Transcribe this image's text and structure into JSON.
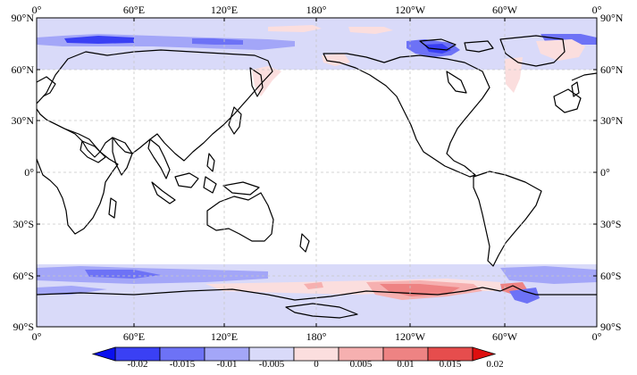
{
  "map": {
    "projection": "equirectangular",
    "central_longitude": "180°",
    "lat_range": [
      -90,
      90
    ],
    "grid": true,
    "lon_ticks": [
      "0°",
      "60°E",
      "120°E",
      "180°",
      "120°W",
      "60°W",
      "0°"
    ],
    "lat_ticks_left": [
      "90°N",
      "60°N",
      "30°N",
      "0°",
      "30°S",
      "60°S",
      "90°S"
    ],
    "lat_ticks_right": [
      "90°N",
      "60°N",
      "30°N",
      "0°",
      "30°S",
      "60°S",
      "90°S"
    ]
  },
  "colorbar": {
    "orientation": "horizontal",
    "placement": "bottom",
    "extend": "both",
    "levels": [
      "-0.02",
      "-0.015",
      "-0.01",
      "-0.005",
      "0",
      "0.005",
      "0.01",
      "0.015",
      "0.02"
    ],
    "colors": [
      "#0a10ee",
      "#3a40f4",
      "#6d72f6",
      "#a3a6f8",
      "#d9daf9",
      "#fbdede",
      "#f6b0b0",
      "#ee8383",
      "#e64d4d",
      "#de0f0f"
    ]
  }
}
